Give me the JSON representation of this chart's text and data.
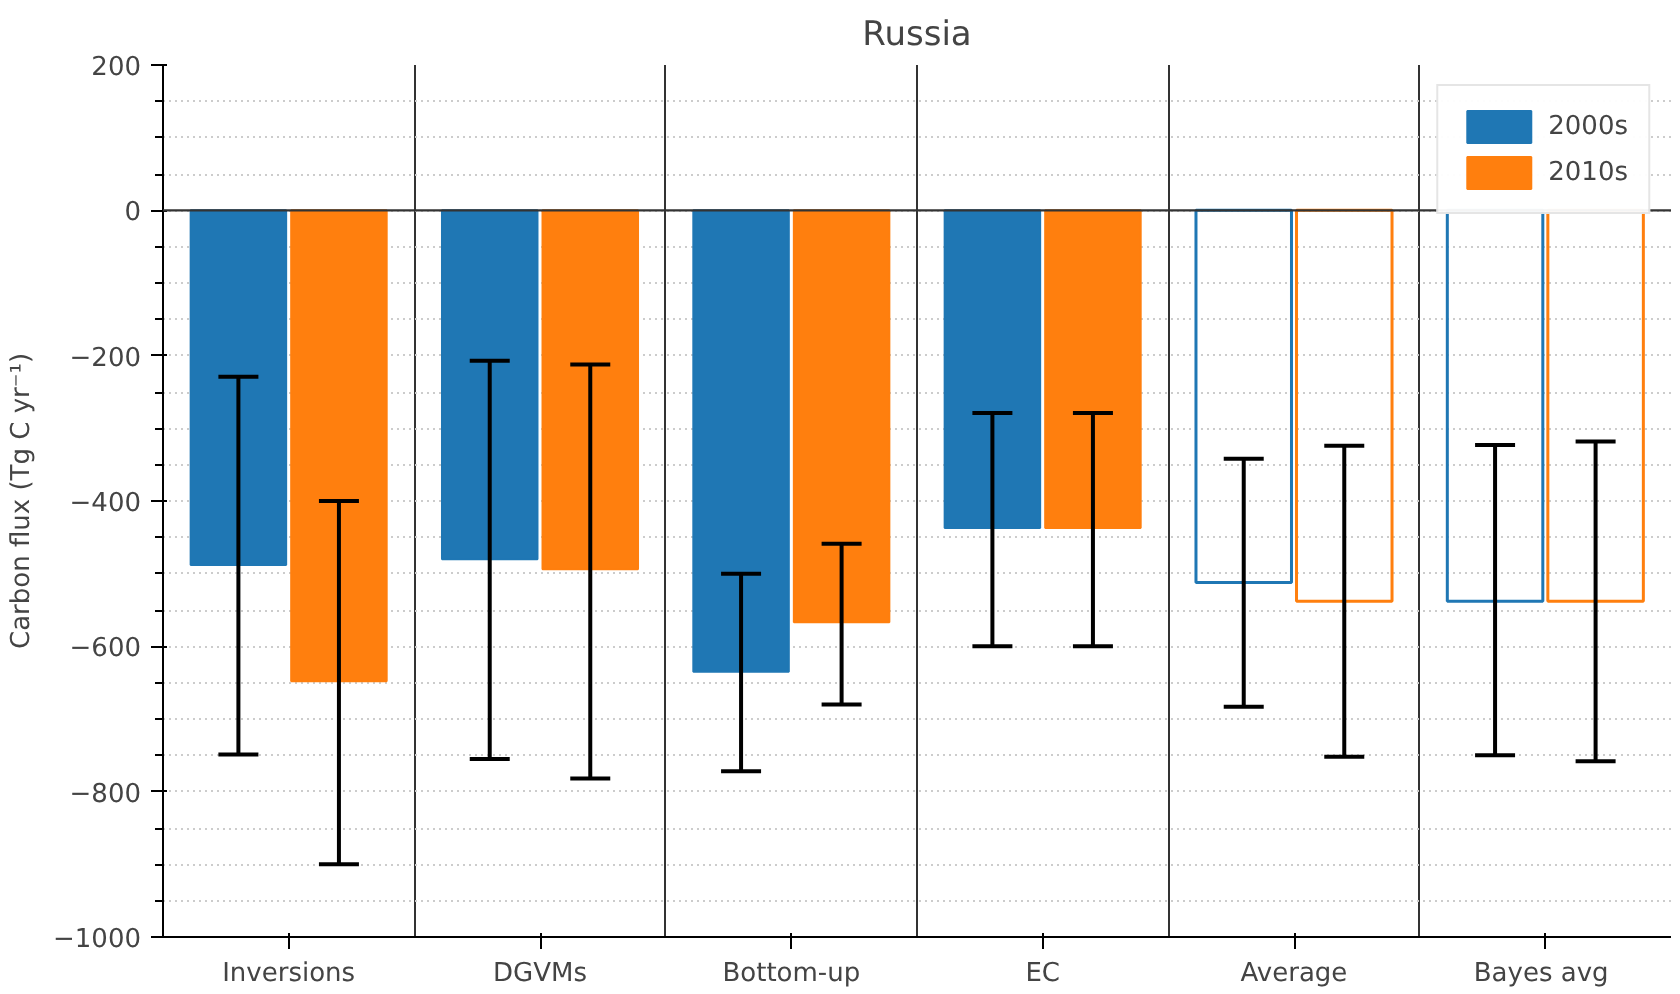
{
  "chart_data": {
    "type": "bar",
    "title": "Russia",
    "ylabel": "Carbon flux (Tg C yr⁻¹)",
    "categories": [
      "Inversions",
      "DGVMs",
      "Bottom-up",
      "EC",
      "Average",
      "Bayes  avg"
    ],
    "series": [
      {
        "name": "2000s",
        "color": "#1f77b4",
        "values": [
          -488,
          -480,
          -635,
          -437,
          null,
          null
        ],
        "errors": [
          [
            -749,
            -229
          ],
          [
            -755,
            -207
          ],
          [
            -772,
            -500
          ],
          [
            -600,
            -279
          ],
          null,
          null
        ]
      },
      {
        "name": "2010s",
        "color": "#ff7f0e",
        "values": [
          -648,
          -494,
          -567,
          -437,
          null,
          null
        ],
        "errors": [
          [
            -900,
            -400
          ],
          [
            -782,
            -212
          ],
          [
            -680,
            -459
          ],
          [
            -600,
            -279
          ],
          null,
          null
        ]
      },
      {
        "color": "#1f77b4",
        "line_style": "solid",
        "values": [
          null,
          null,
          null,
          null,
          -512,
          -538
        ],
        "errors": [
          null,
          null,
          null,
          null,
          [
            -683,
            -342
          ],
          [
            -750,
            -323
          ]
        ]
      },
      {
        "color": "#ff7f0e",
        "line_style": "solid",
        "values": [
          null,
          null,
          null,
          null,
          -538,
          -538
        ],
        "errors": [
          null,
          null,
          null,
          null,
          [
            -752,
            -324
          ],
          [
            -758,
            -318
          ]
        ]
      }
    ],
    "ylim": [
      -1000,
      200
    ],
    "yticks": [
      -1000,
      -800,
      -600,
      -400,
      -200,
      0,
      200
    ],
    "ref_lines": [
      {
        "axis": "y",
        "value": 0,
        "color": "#333333"
      }
    ],
    "grid": true,
    "legend": "top right"
  }
}
